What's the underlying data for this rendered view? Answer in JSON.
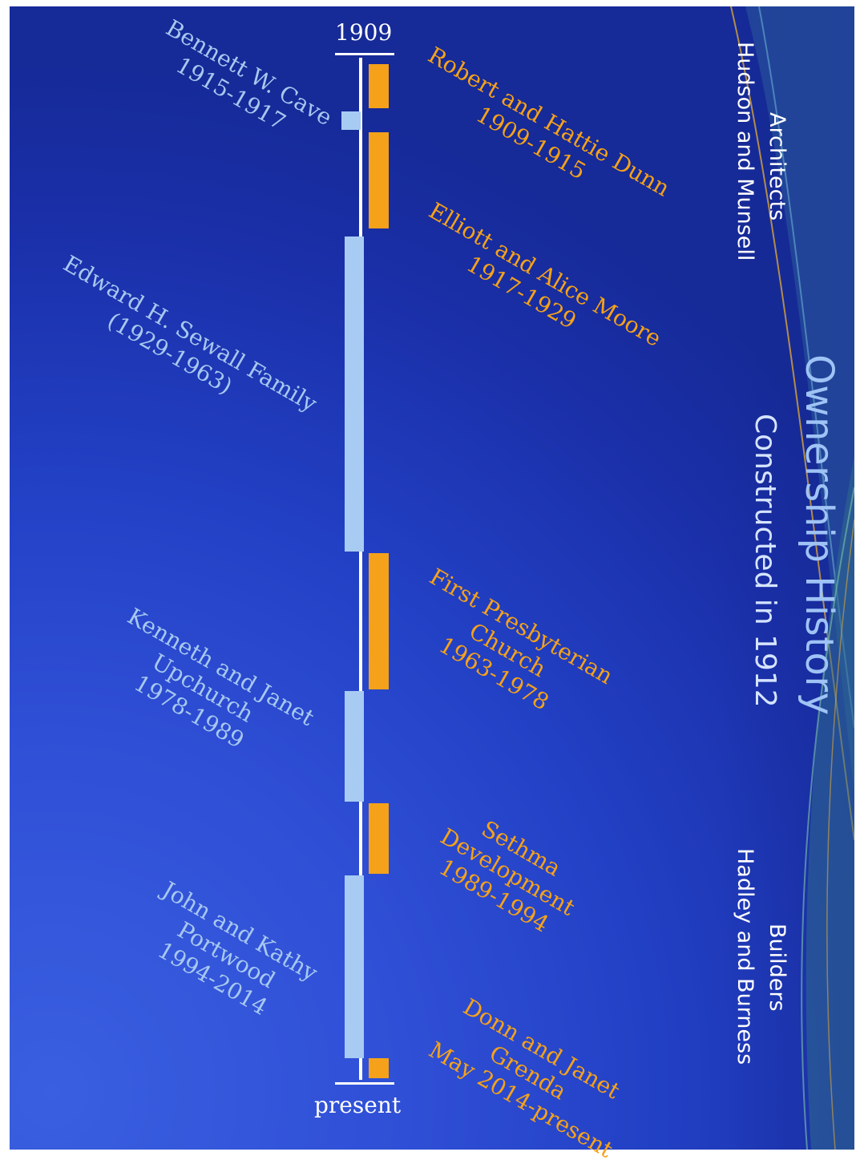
{
  "header": {
    "title": "Ownership History",
    "subtitle": "Constructed in 1912"
  },
  "credits": {
    "architects_label": "Architects",
    "architects": "Hudson and Munsell",
    "builders_label": "Builders",
    "builders": "Hadley and Burness"
  },
  "timeline": {
    "start_label": "1909",
    "end_label": "present",
    "owners": [
      {
        "lines": [
          "Robert  and Hattie Dunn",
          "1909-1915"
        ],
        "start": 1909,
        "end": 1915,
        "side": "right",
        "color": "#f5a21a"
      },
      {
        "lines": [
          "Bennett W. Cave",
          "1915-1917"
        ],
        "start": 1915,
        "end": 1917,
        "side": "left",
        "color": "#a7cbf2"
      },
      {
        "lines": [
          "Elliott and Alice Moore",
          "1917-1929"
        ],
        "start": 1917,
        "end": 1929,
        "side": "right",
        "color": "#f5a21a"
      },
      {
        "lines": [
          "Edward H. Sewall Family",
          "(1929-1963)"
        ],
        "start": 1929,
        "end": 1963,
        "side": "left",
        "color": "#a7cbf2"
      },
      {
        "lines": [
          "First Presbyterian",
          "Church",
          "1963-1978"
        ],
        "start": 1963,
        "end": 1978,
        "side": "right",
        "color": "#f5a21a"
      },
      {
        "lines": [
          "Kenneth and Janet",
          "Upchurch",
          "1978-1989"
        ],
        "start": 1978,
        "end": 1989,
        "side": "left",
        "color": "#a7cbf2"
      },
      {
        "lines": [
          "Sethma",
          "Development",
          "1989-1994"
        ],
        "start": 1989,
        "end": 1994,
        "side": "right",
        "color": "#f5a21a"
      },
      {
        "lines": [
          "John and Kathy",
          "Portwood",
          "1994-2014"
        ],
        "start": 1994,
        "end": 2014,
        "side": "left",
        "color": "#a7cbf2"
      },
      {
        "lines": [
          "Donn and Janet",
          "Grenda",
          "May 2014-present"
        ],
        "start": 2014,
        "end": 2016,
        "side": "right",
        "color": "#f5a21a"
      }
    ]
  }
}
